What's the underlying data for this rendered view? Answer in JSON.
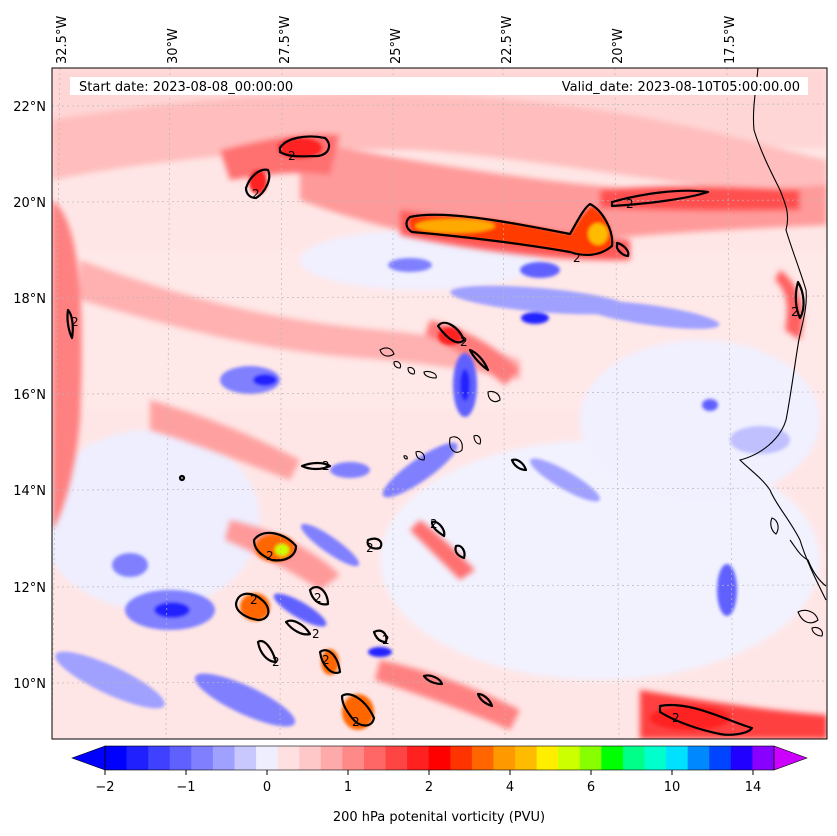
{
  "map": {
    "start_label": "Start date: 2023-08-08_00:00:00",
    "valid_label": "Valid_date: 2023-08-10T05:00:00.00",
    "lon_labels": [
      "32.5°W",
      "30°W",
      "27.5°W",
      "25°W",
      "22.5°W",
      "20°W",
      "17.5°W"
    ],
    "lat_labels": [
      "22°N",
      "20°N",
      "18°N",
      "16°N",
      "14°N",
      "12°N",
      "10°N"
    ],
    "contour_level_label": "2",
    "field": "200 hPa potential vorticity"
  },
  "colorbar": {
    "title": "200 hPa potenital vorticity (PVU)",
    "tick_labels": [
      "−2",
      "−1",
      "0",
      "1",
      "2",
      "4",
      "6",
      "10",
      "14"
    ],
    "colors": [
      "#0000ff",
      "#2020ff",
      "#4040ff",
      "#6060ff",
      "#8080ff",
      "#a0a0ff",
      "#c8c8ff",
      "#eeeeff",
      "#ffe0e0",
      "#ffc8c8",
      "#ffaaaa",
      "#ff8888",
      "#ff6666",
      "#ff4444",
      "#ff2020",
      "#ff0000",
      "#ff3300",
      "#ff6600",
      "#ff9900",
      "#ffbb00",
      "#ffee00",
      "#ccff00",
      "#88ff00",
      "#00ff00",
      "#00ff88",
      "#00ffcc",
      "#00e0ff",
      "#0088ff",
      "#0044ff",
      "#2200ff",
      "#8800ff"
    ],
    "extend_low_color": "#0000ff",
    "extend_high_color": "#cc00ff"
  }
}
